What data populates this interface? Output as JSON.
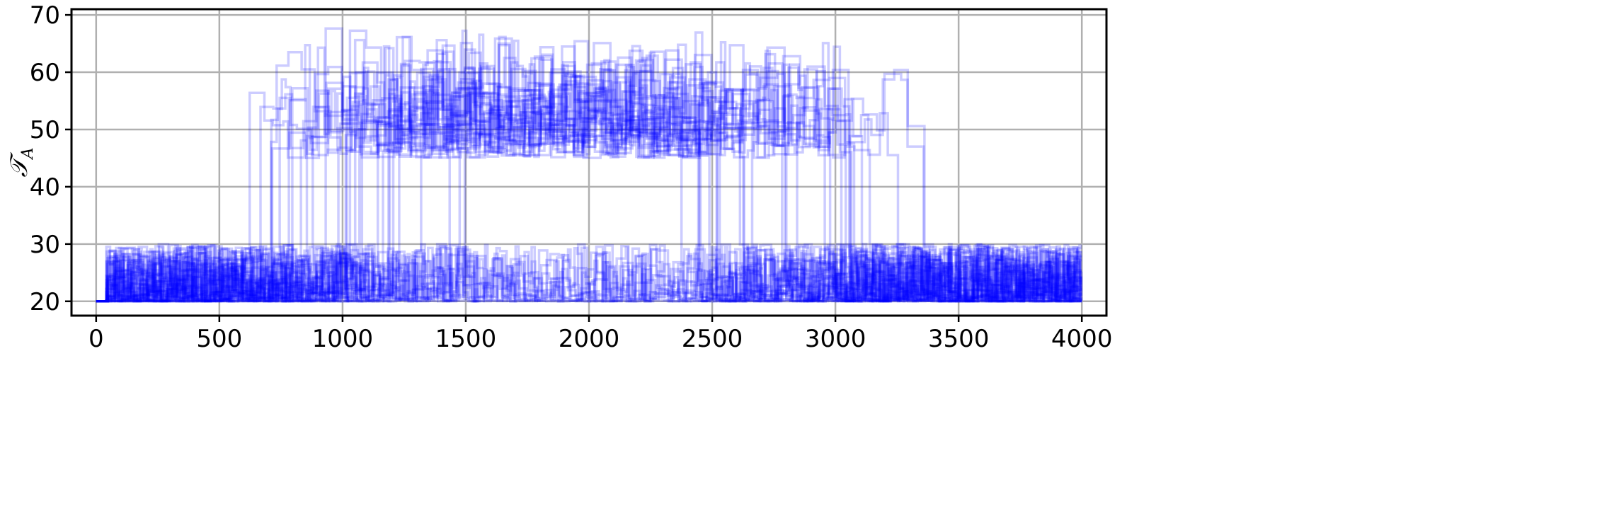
{
  "chart_data": {
    "type": "line",
    "title": "",
    "xlabel": "",
    "ylabel": "𝒯",
    "ylabel_subscript": "A",
    "xlim": [
      -100,
      4100
    ],
    "ylim": [
      17.5,
      71
    ],
    "xticks": [
      0,
      500,
      1000,
      1500,
      2000,
      2500,
      3000,
      3500,
      4000
    ],
    "yticks": [
      20,
      30,
      40,
      50,
      60,
      70
    ],
    "xtick_labels": [
      "0",
      "500",
      "1000",
      "1500",
      "2000",
      "2500",
      "3000",
      "3500",
      "4000"
    ],
    "ytick_labels": [
      "20",
      "30",
      "40",
      "50",
      "60",
      "70"
    ],
    "grid": true,
    "legend": "none",
    "series_color": "#0000ff",
    "series_opacity": 0.2,
    "series_count": 40,
    "style": "step",
    "series_template": {
      "start_value": 20,
      "start_x": [
        0,
        40
      ],
      "low_state_range": [
        20,
        30
      ],
      "high_state_range": [
        45,
        68
      ],
      "x_end": 4000,
      "jump_up_x_range": [
        570,
        1500
      ],
      "jump_down_x_range": [
        2280,
        3350
      ]
    }
  }
}
